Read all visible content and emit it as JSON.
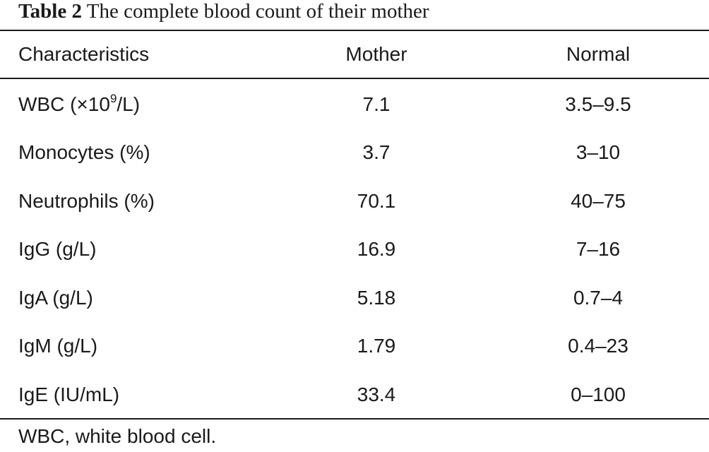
{
  "caption": {
    "label": "Table 2",
    "title": "The complete blood count of their mother"
  },
  "table": {
    "headers": [
      "Characteristics",
      "Mother",
      "Normal"
    ],
    "rows": [
      {
        "characteristic_pre": "WBC (×10",
        "characteristic_sup": "9",
        "characteristic_post": "/L)",
        "mother": "7.1",
        "normal": "3.5–9.5"
      },
      {
        "characteristic": "Monocytes (%)",
        "mother": "3.7",
        "normal": "3–10"
      },
      {
        "characteristic": "Neutrophils (%)",
        "mother": "70.1",
        "normal": "40–75"
      },
      {
        "characteristic": "IgG (g/L)",
        "mother": "16.9",
        "normal": "7–16"
      },
      {
        "characteristic": "IgA (g/L)",
        "mother": "5.18",
        "normal": "0.7–4"
      },
      {
        "characteristic": "IgM (g/L)",
        "mother": "1.79",
        "normal": "0.4–23"
      },
      {
        "characteristic": "IgE (IU/mL)",
        "mother": "33.4",
        "normal": "0–100"
      }
    ]
  },
  "footnote": "WBC, white blood cell."
}
